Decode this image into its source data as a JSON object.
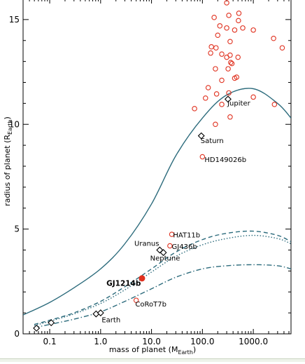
{
  "chart_data": {
    "type": "scatter",
    "title": "",
    "xlabel": "mass of planet (M",
    "xlabel_sub": "Earth",
    "xlabel_close": ")",
    "ylabel": "radius of planet (R",
    "ylabel_sub": "Earth",
    "ylabel_close": ")",
    "xscale": "log",
    "xlim": [
      0.03,
      5500
    ],
    "ylim": [
      0,
      16
    ],
    "x_ticks": [
      {
        "value": 0.1,
        "label": "0.1"
      },
      {
        "value": 1,
        "label": "1.0"
      },
      {
        "value": 10,
        "label": "10.0"
      },
      {
        "value": 100,
        "label": "100.0"
      },
      {
        "value": 1000,
        "label": "1000.0"
      }
    ],
    "y_ticks": [
      {
        "value": 0,
        "label": "0"
      },
      {
        "value": 5,
        "label": "5"
      },
      {
        "value": 10,
        "label": "10"
      },
      {
        "value": 15,
        "label": "15"
      }
    ],
    "grid": false,
    "colors": {
      "curves": "#2c6b7c",
      "exoplanets": "#e0311f",
      "solar": "#000000"
    },
    "series": [
      {
        "marker": "open-circle",
        "color": "#e0311f",
        "points": [
          [
            300,
            15.8
          ],
          [
            520,
            15.3
          ],
          [
            170,
            15.1
          ],
          [
            330,
            15.2
          ],
          [
            510,
            14.95
          ],
          [
            220,
            14.7
          ],
          [
            300,
            14.6
          ],
          [
            620,
            14.6
          ],
          [
            1000,
            14.5
          ],
          [
            430,
            14.5
          ],
          [
            200,
            14.25
          ],
          [
            2500,
            14.1
          ],
          [
            350,
            13.95
          ],
          [
            150,
            13.7
          ],
          [
            3700,
            13.65
          ],
          [
            185,
            13.65
          ],
          [
            240,
            13.35
          ],
          [
            145,
            13.4
          ],
          [
            350,
            13.3
          ],
          [
            500,
            13.2
          ],
          [
            300,
            13.2
          ],
          [
            360,
            12.95
          ],
          [
            380,
            12.9
          ],
          [
            180,
            12.65
          ],
          [
            320,
            12.65
          ],
          [
            470,
            12.25
          ],
          [
            430,
            12.2
          ],
          [
            240,
            12.1
          ],
          [
            130,
            11.75
          ],
          [
            330,
            11.5
          ],
          [
            190,
            11.45
          ],
          [
            115,
            11.25
          ],
          [
            1000,
            11.3
          ],
          [
            240,
            10.95
          ],
          [
            2600,
            10.95
          ],
          [
            70,
            10.75
          ],
          [
            350,
            10.35
          ],
          [
            180,
            10.0
          ],
          [
            100,
            8.45
          ],
          [
            25,
            4.75
          ],
          [
            23,
            4.2
          ],
          [
            5,
            1.6
          ]
        ]
      },
      {
        "marker": "filled-circle",
        "color": "#e0311f",
        "points": [
          [
            6.5,
            2.65
          ]
        ]
      },
      {
        "marker": "open-diamond",
        "color": "#000000",
        "points": [
          [
            0.055,
            0.27
          ],
          [
            0.107,
            0.53
          ],
          [
            0.815,
            0.95
          ],
          [
            1.0,
            1.0
          ],
          [
            14.5,
            4.0
          ],
          [
            17.1,
            3.88
          ],
          [
            95,
            9.45
          ],
          [
            318,
            11.2
          ]
        ]
      }
    ],
    "curves": [
      {
        "style": "solid",
        "points": [
          [
            0.03,
            0.9
          ],
          [
            0.1,
            1.5
          ],
          [
            0.3,
            2.2
          ],
          [
            1,
            3.1
          ],
          [
            3,
            4.3
          ],
          [
            10,
            6.2
          ],
          [
            30,
            8.5
          ],
          [
            100,
            10.3
          ],
          [
            300,
            11.4
          ],
          [
            1000,
            11.7
          ],
          [
            3000,
            11.0
          ],
          [
            5500,
            10.3
          ]
        ]
      },
      {
        "style": "dashed",
        "points": [
          [
            0.05,
            0.45
          ],
          [
            0.1,
            0.65
          ],
          [
            0.3,
            1.0
          ],
          [
            1,
            1.55
          ],
          [
            3,
            2.25
          ],
          [
            10,
            3.1
          ],
          [
            30,
            3.9
          ],
          [
            100,
            4.5
          ],
          [
            300,
            4.8
          ],
          [
            1000,
            4.9
          ],
          [
            3000,
            4.7
          ],
          [
            5500,
            4.4
          ]
        ]
      },
      {
        "style": "dotted",
        "points": [
          [
            0.05,
            0.4
          ],
          [
            0.1,
            0.6
          ],
          [
            0.3,
            0.95
          ],
          [
            1,
            1.45
          ],
          [
            3,
            2.1
          ],
          [
            10,
            2.95
          ],
          [
            30,
            3.7
          ],
          [
            100,
            4.25
          ],
          [
            300,
            4.55
          ],
          [
            1000,
            4.7
          ],
          [
            3000,
            4.55
          ],
          [
            5500,
            4.3
          ]
        ]
      },
      {
        "style": "dashdot",
        "points": [
          [
            0.05,
            0.3
          ],
          [
            0.1,
            0.45
          ],
          [
            0.3,
            0.7
          ],
          [
            1,
            1.05
          ],
          [
            3,
            1.55
          ],
          [
            10,
            2.15
          ],
          [
            30,
            2.7
          ],
          [
            100,
            3.1
          ],
          [
            300,
            3.25
          ],
          [
            1000,
            3.3
          ],
          [
            3000,
            3.25
          ],
          [
            5500,
            3.1
          ]
        ]
      }
    ],
    "annotations": [
      {
        "text": "Jupiter",
        "x": 310,
        "y": 10.9,
        "bold": false
      },
      {
        "text": "Saturn",
        "x": 92,
        "y": 9.1,
        "bold": false
      },
      {
        "text": "HD149026b",
        "x": 110,
        "y": 8.2,
        "bold": false
      },
      {
        "text": "HAT11b",
        "x": 26.5,
        "y": 4.6,
        "bold": false
      },
      {
        "text": "Uranus",
        "x": 4.6,
        "y": 4.2,
        "bold": false
      },
      {
        "text": "GJ436b",
        "x": 25,
        "y": 4.05,
        "bold": false
      },
      {
        "text": "Neptune",
        "x": 9.4,
        "y": 3.5,
        "bold": false
      },
      {
        "text": "GJ1214b",
        "x": 1.3,
        "y": 2.3,
        "bold": true
      },
      {
        "text": "CoRoT7b",
        "x": 4.8,
        "y": 1.3,
        "bold": false
      },
      {
        "text": "Earth",
        "x": 1.05,
        "y": 0.55,
        "bold": false
      }
    ]
  }
}
